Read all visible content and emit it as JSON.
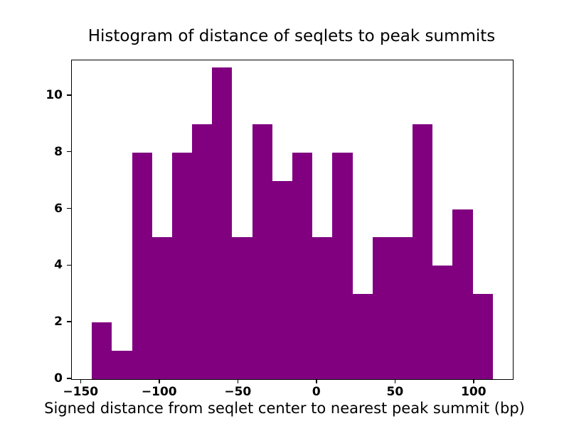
{
  "chart_data": {
    "type": "bar",
    "title": "Histogram of distance of seqlets to peak summits",
    "xlabel": "Signed distance from seqlet center to nearest peak summit (bp)",
    "ylabel": "",
    "bar_color": "#800080",
    "bin_start": -143.25,
    "bin_width": 12.75,
    "counts": [
      2,
      1,
      8,
      5,
      8,
      9,
      11,
      5,
      9,
      7,
      8,
      5,
      8,
      3,
      5,
      5,
      9,
      4,
      6,
      3
    ],
    "xlim": [
      -156,
      124.5
    ],
    "ylim": [
      0,
      11.25
    ],
    "xticks": [
      -150,
      -100,
      -50,
      0,
      50,
      100
    ],
    "yticks": [
      0,
      2,
      4,
      6,
      8,
      10
    ],
    "grid": false,
    "legend": false
  }
}
